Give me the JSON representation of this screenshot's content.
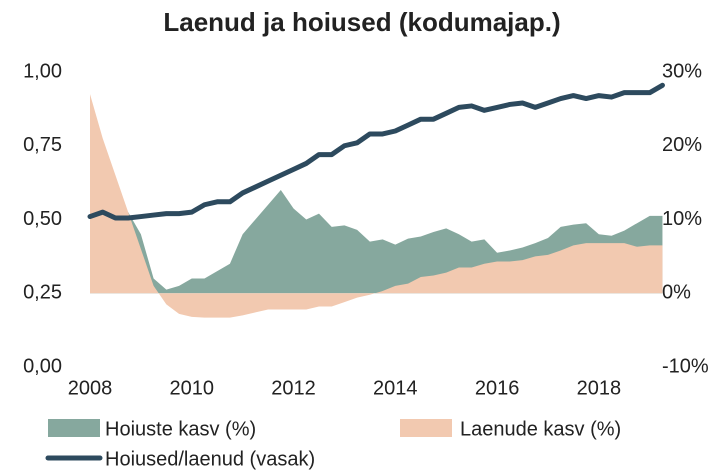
{
  "chart_data": {
    "type": "area-line",
    "title": "Laenud ja hoiused (kodumajap.)",
    "x": [
      2008,
      2008.25,
      2008.5,
      2008.75,
      2009,
      2009.25,
      2009.5,
      2009.75,
      2010,
      2010.25,
      2010.5,
      2010.75,
      2011,
      2011.25,
      2011.5,
      2011.75,
      2012,
      2012.25,
      2012.5,
      2012.75,
      2013,
      2013.25,
      2013.5,
      2013.75,
      2014,
      2014.25,
      2014.5,
      2014.75,
      2015,
      2015.25,
      2015.5,
      2015.75,
      2016,
      2016.25,
      2016.5,
      2016.75,
      2017,
      2017.25,
      2017.5,
      2017.75,
      2018,
      2018.25,
      2018.5,
      2018.75,
      2019,
      2019.25
    ],
    "series": [
      {
        "name": "Hoiuste kasv (%)",
        "color": "#86a89e",
        "axis": "y2",
        "kind": "area",
        "values": [
          15,
          12,
          10,
          11,
          8,
          2,
          0.5,
          1,
          2,
          2,
          3,
          4,
          8,
          10,
          12,
          14,
          11.5,
          10,
          10.8,
          9,
          9.2,
          8.6,
          7,
          7.3,
          6.6,
          7.4,
          7.7,
          8.3,
          8.8,
          8,
          7,
          7.3,
          5.5,
          5.8,
          6.2,
          6.8,
          7.5,
          9,
          9.3,
          9.5,
          8,
          7.8,
          8.5,
          9.5,
          10.5,
          10.5
        ]
      },
      {
        "name": "Laenude kasv (%)",
        "color": "#f2c9b0",
        "axis": "y2",
        "kind": "area",
        "values": [
          27,
          21,
          16,
          11,
          6,
          1,
          -1.5,
          -2.8,
          -3.2,
          -3.3,
          -3.3,
          -3.3,
          -3,
          -2.6,
          -2.2,
          -2.2,
          -2.2,
          -2.2,
          -1.8,
          -1.8,
          -1.2,
          -0.6,
          -0.2,
          0.3,
          1,
          1.3,
          2.2,
          2.4,
          2.8,
          3.5,
          3.5,
          4,
          4.3,
          4.3,
          4.5,
          5,
          5.2,
          5.8,
          6.5,
          6.8,
          6.8,
          6.8,
          6.8,
          6.3,
          6.5,
          6.5
        ]
      },
      {
        "name": "Hoiused/laenud (vasak)",
        "color": "#2d4a5e",
        "axis": "y",
        "kind": "line",
        "values": [
          0.51,
          0.525,
          0.505,
          0.505,
          0.51,
          0.515,
          0.52,
          0.52,
          0.525,
          0.55,
          0.56,
          0.56,
          0.59,
          0.61,
          0.63,
          0.65,
          0.67,
          0.69,
          0.72,
          0.72,
          0.75,
          0.76,
          0.79,
          0.79,
          0.8,
          0.82,
          0.84,
          0.84,
          0.86,
          0.88,
          0.885,
          0.87,
          0.88,
          0.89,
          0.895,
          0.88,
          0.895,
          0.91,
          0.92,
          0.91,
          0.92,
          0.915,
          0.93,
          0.93,
          0.93,
          0.955
        ]
      }
    ],
    "xlim": [
      2008,
      2019.3
    ],
    "xticks": [
      2008,
      2010,
      2012,
      2014,
      2016,
      2018
    ],
    "ylim": [
      0,
      1
    ],
    "yticks": [
      {
        "value": 0,
        "label": "0,00"
      },
      {
        "value": 0.25,
        "label": "0,25"
      },
      {
        "value": 0.5,
        "label": "0,50"
      },
      {
        "value": 0.75,
        "label": "0,75"
      },
      {
        "value": 1,
        "label": "1,00"
      }
    ],
    "y2lim": [
      -10,
      30
    ],
    "y2ticks": [
      {
        "value": -10,
        "label": "-10%"
      },
      {
        "value": 0,
        "label": "0%"
      },
      {
        "value": 10,
        "label": "10%"
      },
      {
        "value": 20,
        "label": "20%"
      },
      {
        "value": 30,
        "label": "30%"
      }
    ],
    "grid": false,
    "legend": "bottom"
  }
}
